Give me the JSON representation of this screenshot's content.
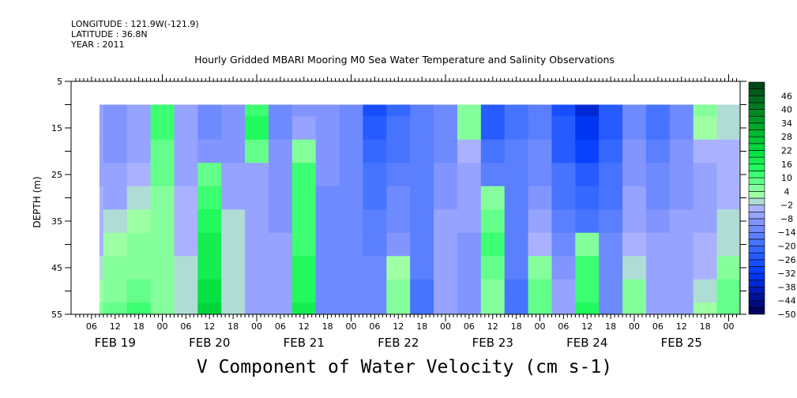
{
  "header": {
    "longitude": "LONGITUDE : 121.9W(-121.9)",
    "latitude": "LATITUDE : 36.8N",
    "year": "YEAR : 2011"
  },
  "chart_data": {
    "type": "heatmap",
    "title": "Hourly Gridded MBARI Mooring M0 Sea Water Temperature and Salinity Observations",
    "xlabel": "V Component of Water Velocity (cm s-1)",
    "ylabel": "DEPTH (m)",
    "y_ticks": [
      5,
      15,
      25,
      35,
      45,
      55
    ],
    "ylim": [
      55,
      5
    ],
    "x_date_labels": [
      "FEB 19",
      "FEB 20",
      "FEB 21",
      "FEB 22",
      "FEB 23",
      "FEB 24",
      "FEB 25"
    ],
    "x_hour_labels": [
      "06",
      "12",
      "18",
      "00"
    ],
    "x_range_hours": [
      2,
      170
    ],
    "colorbar": {
      "levels_min": -50,
      "levels_max": 52,
      "step": 3,
      "labels": [
        "46",
        "40",
        "34",
        "28",
        "22",
        "16",
        "10",
        "4",
        "-2",
        "-8",
        "-14",
        "-20",
        "-26",
        "-32",
        "-38",
        "-44",
        "-50"
      ]
    },
    "depths": [
      10,
      15,
      20,
      25,
      30,
      35,
      40,
      45,
      50,
      55
    ],
    "times_hours_from_feb19": [
      6,
      12,
      18,
      24,
      30,
      36,
      42,
      48,
      54,
      60,
      66,
      72,
      78,
      84,
      90,
      96,
      102,
      108,
      114,
      120,
      126,
      132,
      138,
      144,
      150,
      156,
      162,
      168
    ],
    "values": [
      [
        -8,
        -10,
        -8,
        10,
        -8,
        -12,
        -10,
        12,
        -12,
        -10,
        -10,
        -12,
        -28,
        -22,
        -16,
        -14,
        6,
        -26,
        -18,
        -16,
        -28,
        -38,
        -26,
        -14,
        -20,
        -14,
        6,
        -2
      ],
      [
        -8,
        -10,
        -8,
        10,
        -8,
        -12,
        -10,
        14,
        -12,
        -8,
        -10,
        -12,
        -26,
        -20,
        -16,
        -12,
        4,
        -24,
        -18,
        -15,
        -26,
        -34,
        -24,
        -12,
        -18,
        -12,
        2,
        -2
      ],
      [
        -7,
        -9,
        -6,
        8,
        -7,
        -10,
        -9,
        8,
        -10,
        6,
        -10,
        -12,
        -22,
        -18,
        -16,
        -12,
        -4,
        -20,
        -16,
        -14,
        -24,
        -30,
        -22,
        -10,
        -16,
        -10,
        -4,
        -4
      ],
      [
        -6,
        -8,
        -4,
        8,
        -6,
        8,
        -8,
        -6,
        -10,
        10,
        -11,
        -12,
        -20,
        -16,
        -15,
        -10,
        -6,
        -16,
        -16,
        -12,
        -20,
        -26,
        -20,
        -10,
        -14,
        -10,
        -6,
        -4
      ],
      [
        -5,
        -6,
        -2,
        6,
        -5,
        12,
        -6,
        -6,
        -9,
        10,
        -12,
        -12,
        -18,
        -14,
        -15,
        -10,
        -8,
        6,
        -15,
        -10,
        -18,
        -22,
        -18,
        -8,
        -12,
        -9,
        -6,
        -4
      ],
      [
        -4,
        -2,
        2,
        6,
        -4,
        14,
        -2,
        -6,
        -9,
        12,
        -12,
        -12,
        -16,
        -12,
        -15,
        -8,
        -8,
        8,
        -15,
        -8,
        -16,
        -18,
        -16,
        -6,
        -10,
        -8,
        -6,
        -2
      ],
      [
        -3,
        2,
        4,
        6,
        -3,
        16,
        -2,
        -6,
        -8,
        12,
        -13,
        -12,
        -15,
        -10,
        -16,
        -8,
        -9,
        10,
        -16,
        -4,
        -14,
        4,
        -14,
        -4,
        -8,
        -8,
        -5,
        0
      ],
      [
        -2,
        4,
        6,
        6,
        -2,
        18,
        0,
        -6,
        -8,
        14,
        -13,
        -12,
        -14,
        2,
        -17,
        -6,
        -10,
        8,
        -17,
        6,
        -10,
        10,
        -12,
        -2,
        -8,
        -8,
        -4,
        4
      ],
      [
        2,
        6,
        8,
        6,
        -2,
        20,
        0,
        -6,
        -8,
        14,
        -14,
        -12,
        -14,
        4,
        -18,
        -6,
        -10,
        6,
        -18,
        8,
        -8,
        12,
        -12,
        4,
        -8,
        -7,
        -2,
        8
      ],
      [
        4,
        8,
        10,
        6,
        -2,
        22,
        0,
        -6,
        -8,
        16,
        -14,
        -12,
        -14,
        4,
        -18,
        -6,
        -10,
        6,
        -18,
        8,
        -6,
        14,
        -12,
        6,
        -8,
        -7,
        2,
        8
      ]
    ]
  }
}
